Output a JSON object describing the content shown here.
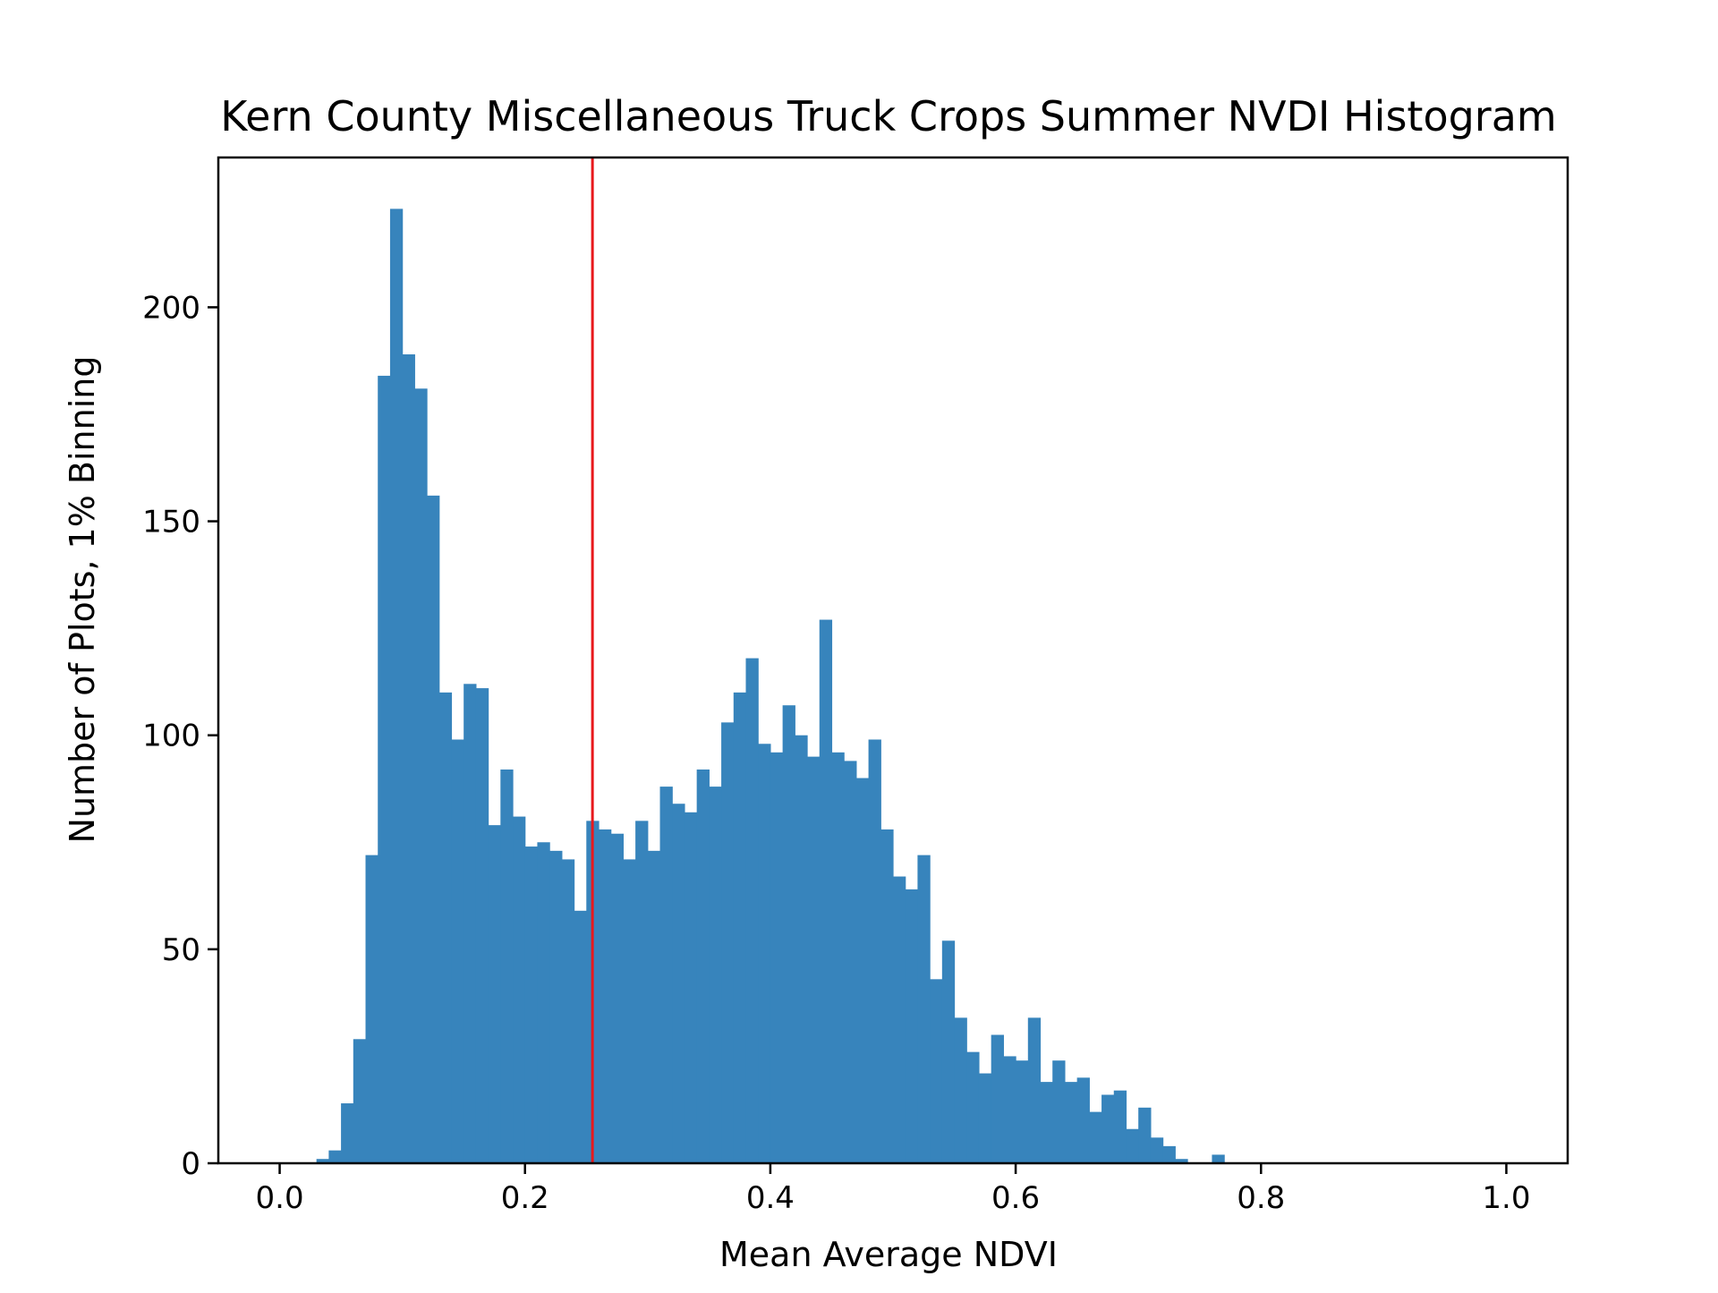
{
  "chart_data": {
    "type": "bar",
    "title": "Kern County Miscellaneous Truck Crops Summer NVDI Histogram",
    "xlabel": "Mean Average NDVI",
    "ylabel": "Number of Plots, 1% Binning",
    "xlim": [
      -0.05,
      1.05
    ],
    "ylim": [
      0,
      235
    ],
    "x_ticks": [
      0.0,
      0.2,
      0.4,
      0.6,
      0.8,
      1.0
    ],
    "x_tick_labels": [
      "0.0",
      "0.2",
      "0.4",
      "0.6",
      "0.8",
      "1.0"
    ],
    "y_ticks": [
      0,
      50,
      100,
      150,
      200
    ],
    "y_tick_labels": [
      "0",
      "50",
      "100",
      "150",
      "200"
    ],
    "bin_width": 0.01,
    "bin_start": 0.0,
    "bin_counts": [
      0,
      0,
      0,
      1,
      3,
      14,
      29,
      72,
      184,
      223,
      189,
      181,
      156,
      110,
      99,
      112,
      111,
      79,
      92,
      81,
      74,
      75,
      73,
      71,
      59,
      80,
      78,
      77,
      71,
      80,
      73,
      88,
      84,
      82,
      92,
      88,
      103,
      110,
      118,
      98,
      96,
      107,
      100,
      95,
      127,
      96,
      94,
      90,
      99,
      78,
      67,
      64,
      72,
      43,
      52,
      34,
      26,
      21,
      30,
      25,
      24,
      34,
      19,
      24,
      19,
      20,
      12,
      16,
      17,
      8,
      13,
      6,
      4,
      1,
      0,
      0,
      2,
      0,
      0,
      0,
      0,
      0,
      0,
      0,
      0,
      0,
      0,
      0,
      0,
      0,
      0,
      0,
      0,
      0,
      0,
      0,
      0,
      0,
      0,
      0
    ],
    "bar_color": "#3784bc",
    "reference_line": {
      "x": 0.255,
      "color": "#e8191c"
    },
    "grid": false,
    "legend": "none"
  }
}
